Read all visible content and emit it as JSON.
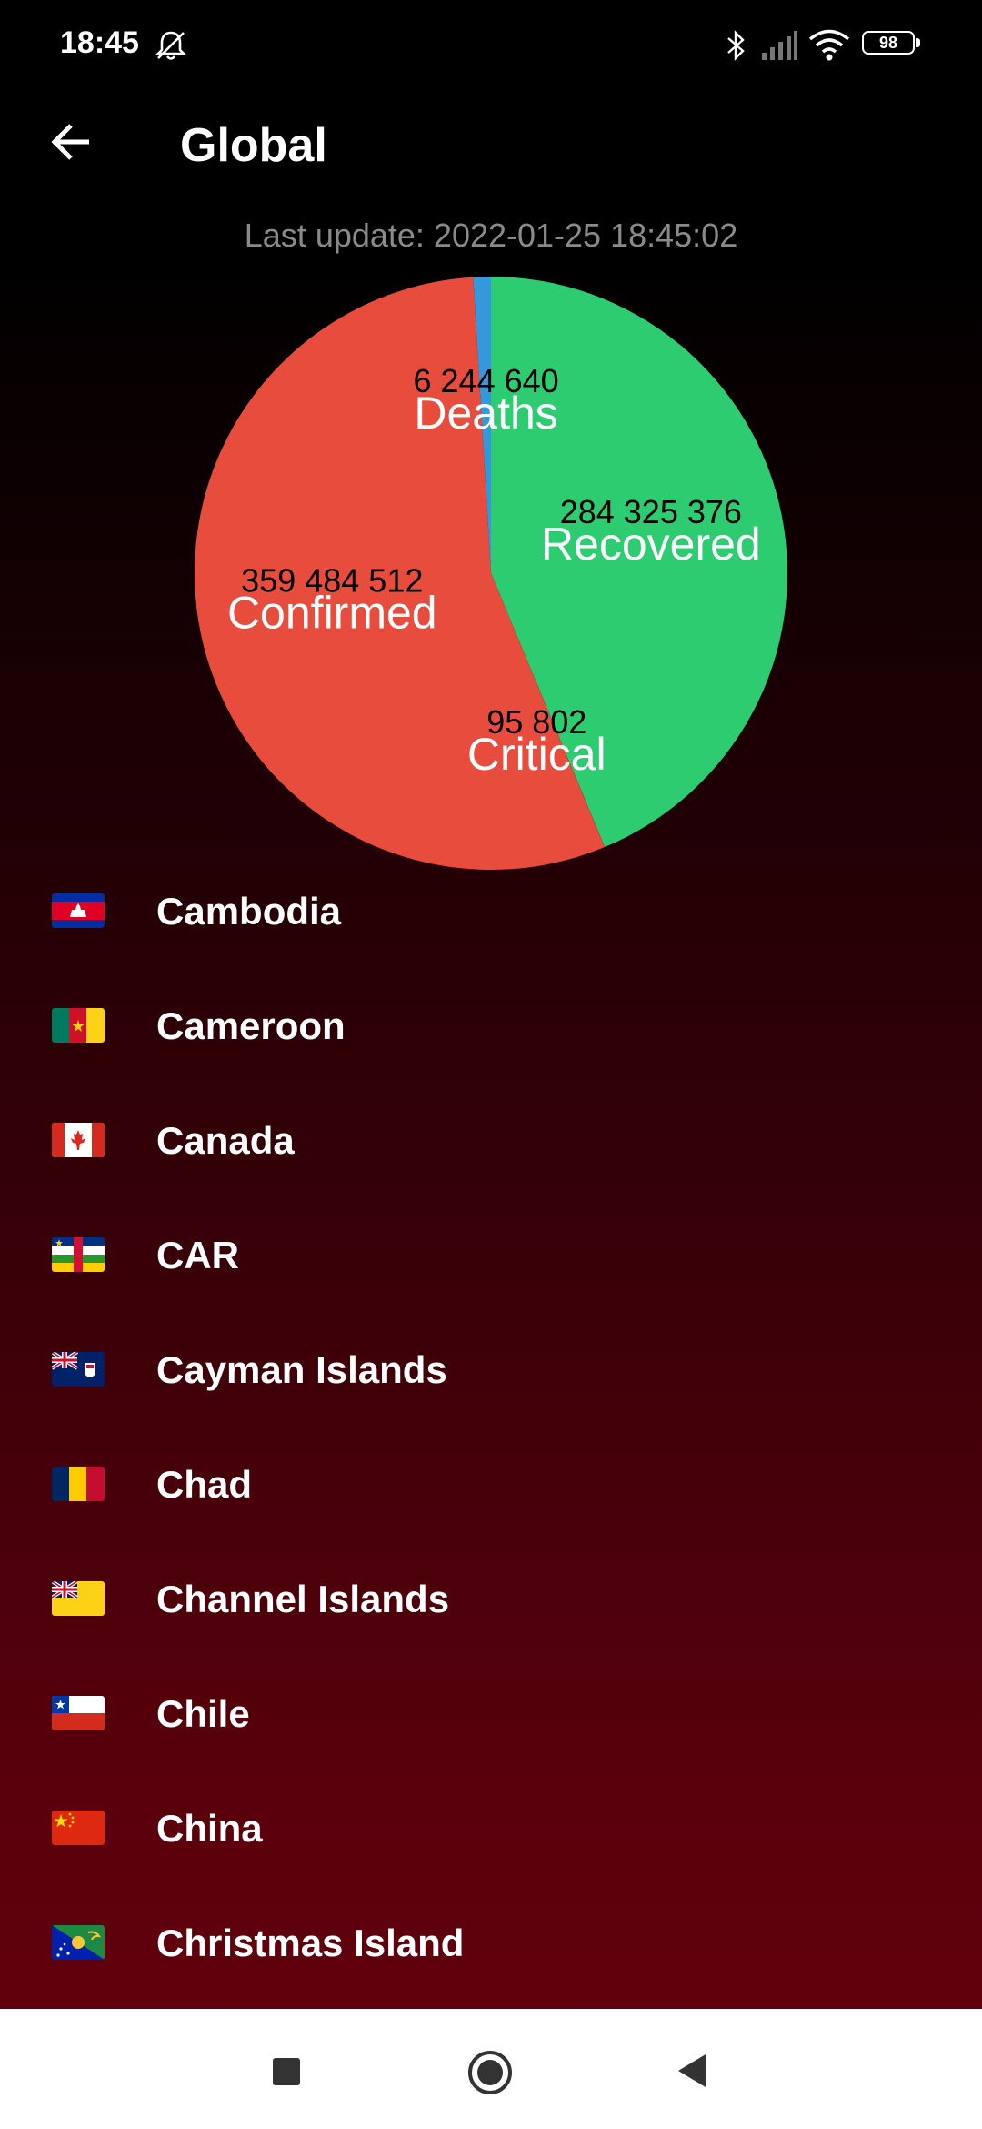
{
  "status_bar": {
    "time": "18:45",
    "battery": "98",
    "icons": [
      "bell-off-icon",
      "bluetooth-icon",
      "signal-icon",
      "wifi-icon",
      "battery-icon"
    ]
  },
  "app_bar": {
    "back_icon": "arrow-left-icon",
    "title": "Global"
  },
  "last_update": "Last update: 2022-01-25 18:45:02",
  "chart_data": {
    "type": "pie",
    "slices": [
      {
        "name": "Confirmed",
        "value": 359484512,
        "value_label": "359 484 512",
        "color": "#e74c3c"
      },
      {
        "name": "Deaths",
        "value": 6244640,
        "value_label": "6 244 640",
        "color": "#3498db"
      },
      {
        "name": "Recovered",
        "value": 284325376,
        "value_label": "284 325 376",
        "color": "#2ecc71"
      },
      {
        "name": "Critical",
        "value": 95802,
        "value_label": "95 802",
        "color": "#e74c3c"
      }
    ]
  },
  "countries": [
    {
      "name": "Cambodia",
      "flag_icon": "flag-cambodia-icon"
    },
    {
      "name": "Cameroon",
      "flag_icon": "flag-cameroon-icon"
    },
    {
      "name": "Canada",
      "flag_icon": "flag-canada-icon"
    },
    {
      "name": "CAR",
      "flag_icon": "flag-car-icon"
    },
    {
      "name": "Cayman Islands",
      "flag_icon": "flag-cayman-islands-icon"
    },
    {
      "name": "Chad",
      "flag_icon": "flag-chad-icon"
    },
    {
      "name": "Channel Islands",
      "flag_icon": "flag-channel-islands-icon"
    },
    {
      "name": "Chile",
      "flag_icon": "flag-chile-icon"
    },
    {
      "name": "China",
      "flag_icon": "flag-china-icon"
    },
    {
      "name": "Christmas Island",
      "flag_icon": "flag-christmas-island-icon"
    }
  ],
  "nav_bar": {
    "icons": [
      "recents-square-icon",
      "home-circle-icon",
      "back-triangle-icon"
    ]
  }
}
